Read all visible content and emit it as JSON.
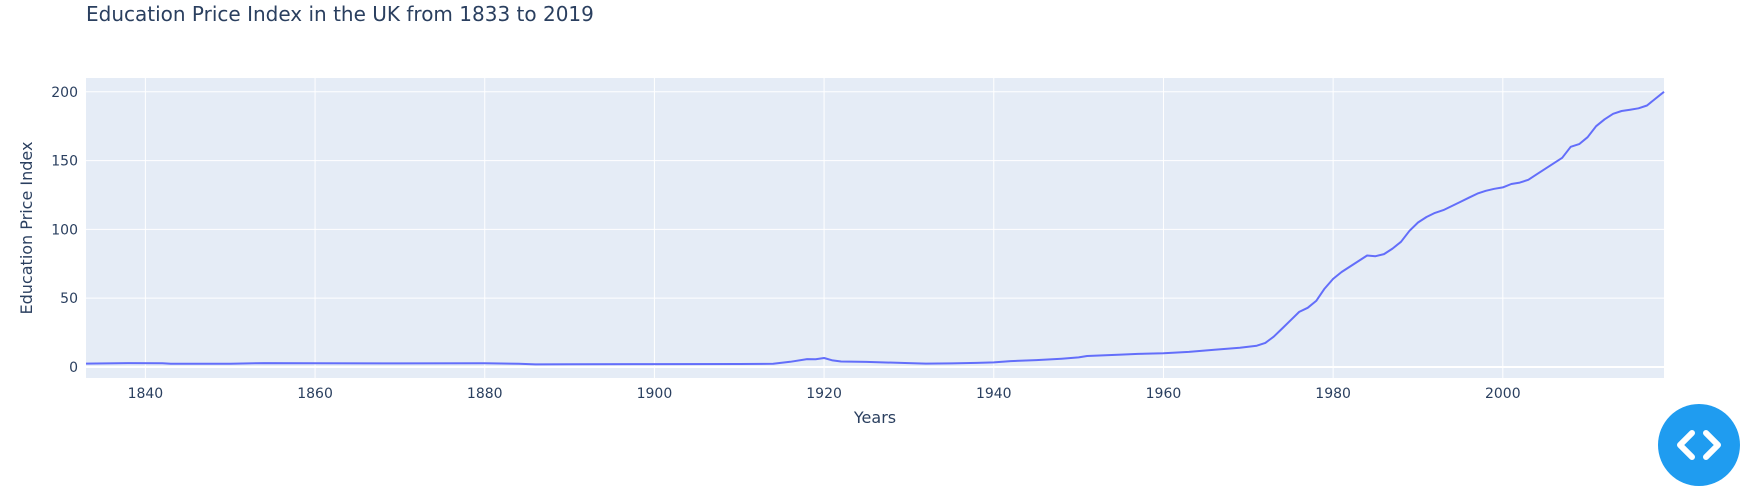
{
  "chart_data": {
    "type": "line",
    "title": "Education Price Index in the UK from 1833 to 2019",
    "xlabel": "Years",
    "ylabel": "Education Price Index",
    "xlim": [
      1833,
      2019
    ],
    "ylim": [
      -8,
      210
    ],
    "x_ticks": [
      1840,
      1860,
      1880,
      1900,
      1920,
      1940,
      1960,
      1980,
      2000
    ],
    "y_ticks": [
      0,
      50,
      100,
      150,
      200
    ],
    "grid": true,
    "legend": "none",
    "colors": {
      "line": "#636efa",
      "plot_bg": "#e5ecf6",
      "grid": "#ffffff",
      "text": "#2a3f5f",
      "button": "#1f9cf0"
    },
    "series": [
      {
        "x": [
          1833,
          1838,
          1842,
          1843,
          1850,
          1854,
          1860,
          1870,
          1880,
          1884,
          1886,
          1890,
          1900,
          1910,
          1914,
          1916,
          1918,
          1919,
          1920,
          1921,
          1922,
          1925,
          1930,
          1932,
          1935,
          1938,
          1940,
          1942,
          1945,
          1948,
          1950,
          1951,
          1955,
          1957,
          1960,
          1963,
          1966,
          1969,
          1971,
          1972,
          1973,
          1974,
          1975,
          1976,
          1977,
          1978,
          1979,
          1980,
          1981,
          1982,
          1983,
          1984,
          1985,
          1986,
          1987,
          1988,
          1989,
          1990,
          1991,
          1992,
          1993,
          1994,
          1995,
          1996,
          1997,
          1998,
          1999,
          2000,
          2001,
          2002,
          2003,
          2004,
          2005,
          2006,
          2007,
          2008,
          2009,
          2010,
          2011,
          2012,
          2013,
          2014,
          2015,
          2016,
          2017,
          2018,
          2019
        ],
        "y": [
          2.5,
          2.8,
          2.7,
          2.3,
          2.3,
          2.8,
          2.7,
          2.6,
          2.7,
          2.3,
          1.9,
          2.0,
          2.1,
          2.2,
          2.3,
          3.8,
          5.7,
          5.6,
          6.5,
          4.8,
          4.0,
          3.7,
          2.8,
          2.5,
          2.6,
          3.0,
          3.3,
          4.3,
          5.0,
          6.0,
          7.0,
          8.0,
          9.0,
          9.5,
          10.0,
          11.0,
          12.5,
          14.0,
          15.5,
          17.5,
          22.0,
          28.0,
          34.0,
          40.0,
          43.0,
          48.0,
          57.0,
          64.0,
          69.0,
          73.0,
          77.0,
          81.0,
          80.5,
          82.0,
          86.0,
          91.0,
          99.0,
          105.0,
          109.0,
          112.0,
          114.0,
          117.0,
          120.0,
          123.0,
          126.0,
          128.0,
          129.5,
          130.5,
          133.0,
          134.0,
          136.0,
          140.0,
          144.0,
          148.0,
          152.0,
          160.0,
          162.0,
          167.0,
          175.0,
          180.0,
          184.0,
          186.0,
          187.0,
          188.0,
          190.0,
          195.0,
          200.0
        ]
      }
    ]
  }
}
